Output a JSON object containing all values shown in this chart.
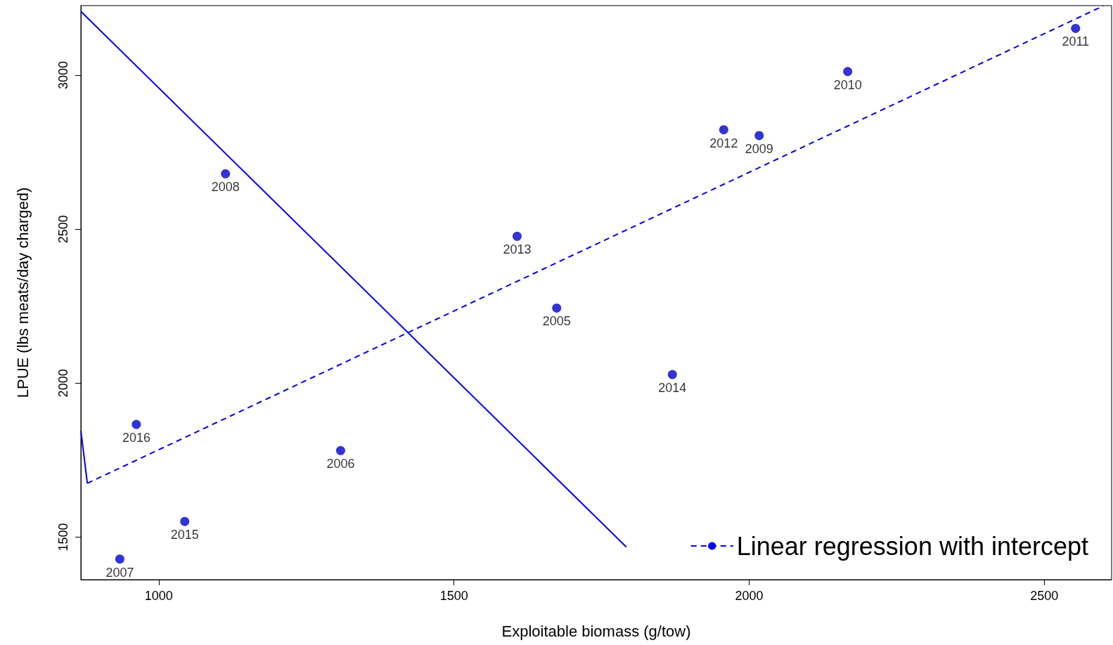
{
  "chart_data": {
    "type": "scatter",
    "xlabel": "Exploitable biomass (g/tow)",
    "ylabel": "LPUE (lbs meats/day charged)",
    "xlim": [
      868,
      2614
    ],
    "ylim": [
      1362,
      3226
    ],
    "xticks": [
      1000,
      1500,
      2000,
      2500
    ],
    "yticks": [
      1500,
      2000,
      2500,
      3000
    ],
    "grid": false,
    "legend": "bottom right",
    "series": [
      {
        "color": "#0000cc",
        "marker": "circle",
        "x": [
          934,
          962,
          1044,
          1113,
          1308,
          1607,
          1674,
          1870,
          1957,
          2017,
          2167,
          2553
        ],
        "values": [
          1429,
          1866,
          1551,
          2680,
          1781,
          2477,
          2244,
          2028,
          2823,
          2804,
          3012,
          3152
        ]
      },
      {
        "type": "line",
        "name": "Linear regression with intercept",
        "color": "#0000ee",
        "marker": "none",
        "line_style": "dashed",
        "x": [
          879,
          2600
        ],
        "values": [
          1675,
          3225
        ]
      },
      {
        "type": "line",
        "color": "#0000ee",
        "marker": "none",
        "line_style": "solid",
        "x": [
          868,
          1792
        ],
        "values": [
          3207,
          1468
        ]
      },
      {
        "type": "line",
        "color": "#0000ee",
        "marker": "none",
        "line_style": "solid",
        "x": [
          868,
          879
        ],
        "values": [
          1846,
          1675
        ]
      }
    ],
    "annotations": [
      {
        "text": "2007",
        "x": 934,
        "y": 1429
      },
      {
        "text": "2016",
        "x": 962,
        "y": 1866
      },
      {
        "text": "2015",
        "x": 1044,
        "y": 1551
      },
      {
        "text": "2008",
        "x": 1113,
        "y": 2680
      },
      {
        "text": "2006",
        "x": 1308,
        "y": 1781
      },
      {
        "text": "2013",
        "x": 1607,
        "y": 2477
      },
      {
        "text": "2005",
        "x": 1674,
        "y": 2244
      },
      {
        "text": "2014",
        "x": 1870,
        "y": 2028
      },
      {
        "text": "2012",
        "x": 1957,
        "y": 2823
      },
      {
        "text": "2009",
        "x": 2017,
        "y": 2804
      },
      {
        "text": "2010",
        "x": 2167,
        "y": 3012
      },
      {
        "text": "2011",
        "x": 2553,
        "y": 3152
      }
    ]
  }
}
